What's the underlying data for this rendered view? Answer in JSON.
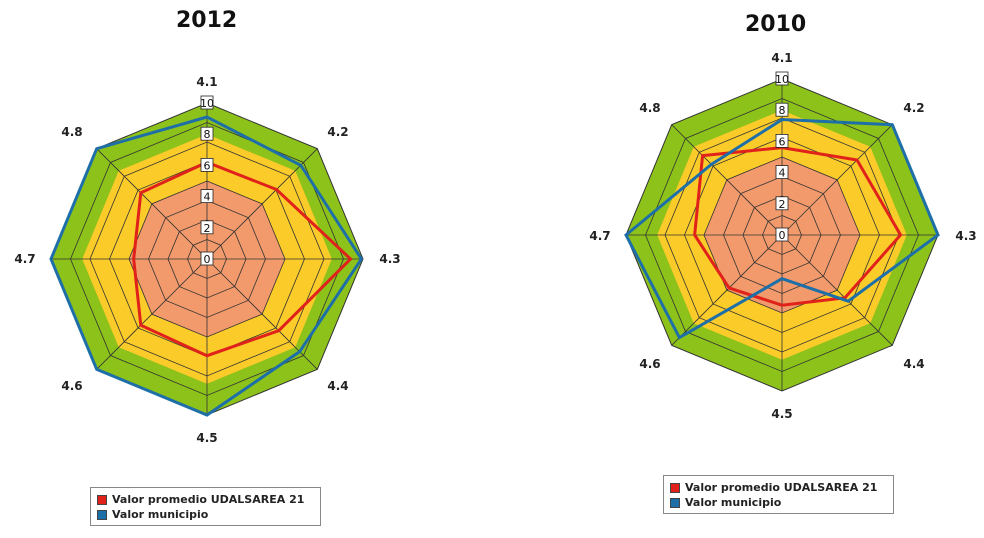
{
  "chart_data": [
    {
      "type": "radar",
      "title": "2012",
      "axes": [
        "4.1",
        "4.2",
        "4.3",
        "4.4",
        "4.5",
        "4.6",
        "4.7",
        "4.8"
      ],
      "scale_ticks": [
        "0",
        "2",
        "4",
        "6",
        "8",
        "10"
      ],
      "rmax": 10,
      "bands": [
        {
          "from": 0,
          "to": 5,
          "color": "#f29a6b"
        },
        {
          "from": 5,
          "to": 8,
          "color": "#fbcb2a"
        },
        {
          "from": 8,
          "to": 10,
          "color": "#8cc21a"
        }
      ],
      "series": [
        {
          "name": "Valor promedio UDALSAREA 21",
          "color": "#e0221a",
          "values": [
            6.2,
            6.3,
            9.2,
            6.5,
            6.2,
            6.0,
            4.7,
            6.0
          ]
        },
        {
          "name": "Valor municipio",
          "color": "#1e6fa8",
          "values": [
            9.1,
            8.5,
            9.9,
            8.4,
            10,
            10,
            10,
            10
          ]
        }
      ],
      "legend_position": "bottom"
    },
    {
      "type": "radar",
      "title": "2010",
      "axes": [
        "4.1",
        "4.2",
        "4.3",
        "4.4",
        "4.5",
        "4.6",
        "4.7",
        "4.8"
      ],
      "scale_ticks": [
        "0",
        "2",
        "4",
        "6",
        "8",
        "10"
      ],
      "rmax": 10,
      "bands": [
        {
          "from": 0,
          "to": 5,
          "color": "#f29a6b"
        },
        {
          "from": 5,
          "to": 8,
          "color": "#fbcb2a"
        },
        {
          "from": 8,
          "to": 10,
          "color": "#8cc21a"
        }
      ],
      "series": [
        {
          "name": "Valor promedio UDALSAREA 21",
          "color": "#e0221a",
          "values": [
            5.6,
            6.8,
            7.6,
            5.7,
            4.5,
            4.8,
            5.6,
            7.2
          ]
        },
        {
          "name": "Valor municipio",
          "color": "#1e6fa8",
          "values": [
            7.4,
            10,
            10,
            6.0,
            2.8,
            9.3,
            10,
            6.4
          ]
        }
      ],
      "legend_position": "bottom"
    }
  ]
}
